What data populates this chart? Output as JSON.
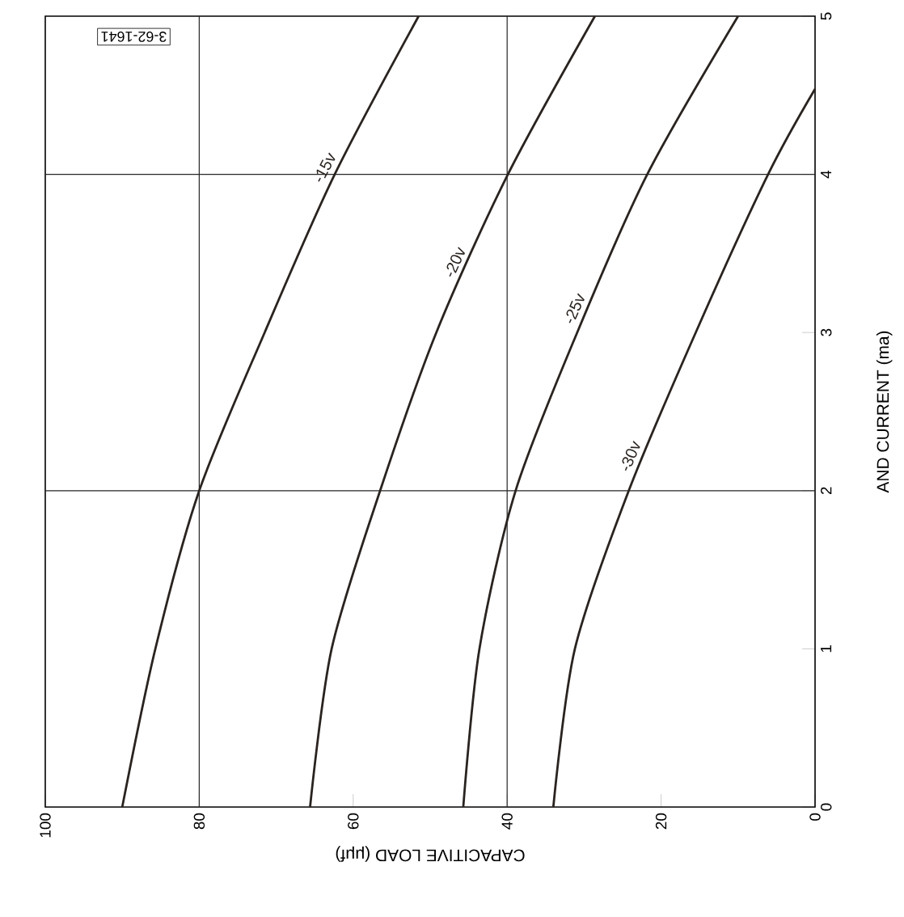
{
  "chart_data": {
    "type": "line",
    "xlabel": "CAPACITIVE LOAD (μμf)",
    "ylabel": "AND CURRENT (ma)",
    "annotations": [
      "3-62-1641"
    ],
    "xlim": [
      100,
      0
    ],
    "ylim": [
      0,
      5
    ],
    "xticks": [
      0,
      20,
      40,
      60,
      80,
      100
    ],
    "yticks": [
      0,
      1,
      2,
      3,
      4,
      5
    ],
    "grid": false,
    "marker": "none",
    "line_style": "solid",
    "ref_lines": [
      {
        "axis": "y",
        "value": 2
      },
      {
        "axis": "y",
        "value": 4
      },
      {
        "axis": "x",
        "value": 80
      },
      {
        "axis": "x",
        "value": 40
      }
    ],
    "series": [
      {
        "name": "-15v",
        "color": "#2a2420",
        "x": [
          90,
          85.7,
          80,
          71.5,
          62.4,
          51.5
        ],
        "values": [
          0,
          1,
          2,
          3,
          4,
          5
        ]
      },
      {
        "name": "-20v",
        "color": "#2a2420",
        "x": [
          65.6,
          62.8,
          56.5,
          49.2,
          39.9,
          28.6
        ],
        "values": [
          0,
          1,
          2,
          3,
          4,
          5
        ]
      },
      {
        "name": "-25v",
        "color": "#2a2420",
        "x": [
          45.7,
          43.6,
          38.9,
          30.9,
          21.8,
          10
        ],
        "values": [
          0,
          1,
          2,
          3,
          4,
          5
        ]
      },
      {
        "name": "-30v",
        "color": "#2a2420",
        "x": [
          34,
          31.2,
          24.2,
          15.5,
          6.1,
          0
        ],
        "values": [
          0,
          1,
          2,
          3,
          4,
          4.54
        ]
      }
    ]
  }
}
